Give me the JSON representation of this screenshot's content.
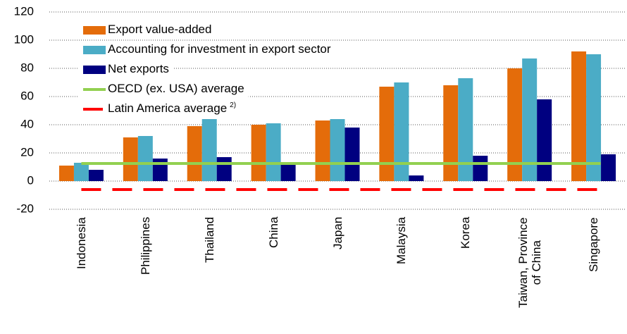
{
  "chart_data": {
    "type": "bar",
    "categories": [
      "Indonesia",
      "Philippines",
      "Thailand",
      "China",
      "Japan",
      "Malaysia",
      "Korea",
      "Taiwan, Province\nof China",
      "Singapore"
    ],
    "series": [
      {
        "name": "Export value-added",
        "color": "#e46c0a",
        "values": [
          11,
          31,
          39,
          40,
          43,
          67,
          68,
          80,
          92
        ]
      },
      {
        "name": "Accounting for investment in export sector",
        "color": "#4bacc6",
        "values": [
          13,
          32,
          44,
          41,
          44,
          70,
          73,
          87,
          90
        ]
      },
      {
        "name": "Net exports",
        "color": "#000080",
        "values": [
          8,
          16,
          17,
          12,
          38,
          4,
          18,
          58,
          19
        ]
      }
    ],
    "lines": [
      {
        "name": "OECD (ex. USA) average",
        "color": "#92d050",
        "value": 12.5
      },
      {
        "name": "Latin America average",
        "note": "2)",
        "color": "#ff0000",
        "value": -6,
        "dashed": true
      }
    ],
    "ylim": [
      -20,
      120
    ],
    "yticks": [
      -20,
      0,
      20,
      40,
      60,
      80,
      100,
      120
    ],
    "grid": true
  }
}
